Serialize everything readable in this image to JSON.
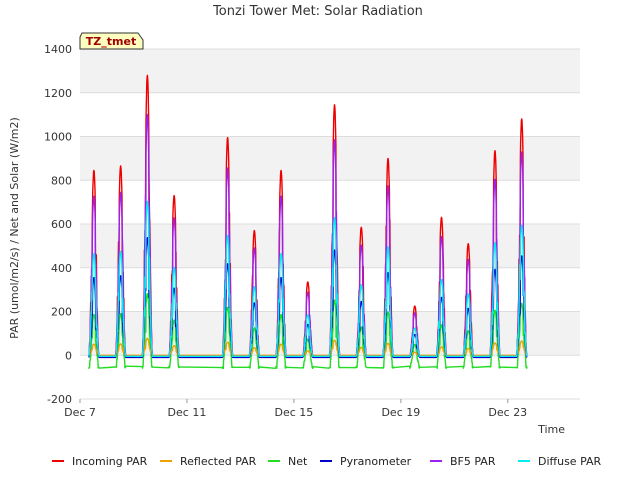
{
  "chart_data": {
    "type": "line",
    "title": "Tonzi Tower Met: Solar Radiation",
    "xlabel": "Time",
    "ylabel": "PAR (umol/m2/s) / Net and Solar (W/m2)",
    "xlim": [
      7.0,
      25.7
    ],
    "ylim": [
      -200,
      1400
    ],
    "yticks": [
      -200,
      0,
      200,
      400,
      600,
      800,
      1000,
      1200,
      1400
    ],
    "xticks": [
      {
        "value": 7,
        "label": "Dec 7"
      },
      {
        "value": 11,
        "label": "Dec 11"
      },
      {
        "value": 15,
        "label": "Dec 15"
      },
      {
        "value": 19,
        "label": "Dec 19"
      },
      {
        "value": 23,
        "label": "Dec 23"
      }
    ],
    "tag": "TZ_tmet",
    "legend_position": "bottom",
    "days": [
      {
        "day": 7,
        "peak": 845
      },
      {
        "day": 8,
        "peak": 865
      },
      {
        "day": 9,
        "peak": 1280
      },
      {
        "day": 10,
        "peak": 730
      },
      {
        "day": 12,
        "peak": 995
      },
      {
        "day": 13,
        "peak": 570
      },
      {
        "day": 14,
        "peak": 845
      },
      {
        "day": 15,
        "peak": 335
      },
      {
        "day": 16,
        "peak": 1145
      },
      {
        "day": 17,
        "peak": 585
      },
      {
        "day": 18,
        "peak": 900
      },
      {
        "day": 19,
        "peak": 225
      },
      {
        "day": 20,
        "peak": 630
      },
      {
        "day": 21,
        "peak": 510
      },
      {
        "day": 22,
        "peak": 935
      },
      {
        "day": 23,
        "peak": 1080
      }
    ],
    "series": [
      {
        "name": "Incoming PAR",
        "color": "#ee0000",
        "ratio": 1.0,
        "night": -5
      },
      {
        "name": "Reflected PAR",
        "color": "#f0a000",
        "ratio": 0.06,
        "night": 0
      },
      {
        "name": "Net",
        "color": "#22dd22",
        "ratio": 0.22,
        "night": -50
      },
      {
        "name": "Pyranometer",
        "color": "#0000cc",
        "ratio": 0.42,
        "night": -10
      },
      {
        "name": "BF5 PAR",
        "color": "#9922ee",
        "ratio": 0.86,
        "night": -5
      },
      {
        "name": "Diffuse PAR",
        "color": "#00eeee",
        "ratio": 0.55,
        "night": -5
      }
    ]
  }
}
